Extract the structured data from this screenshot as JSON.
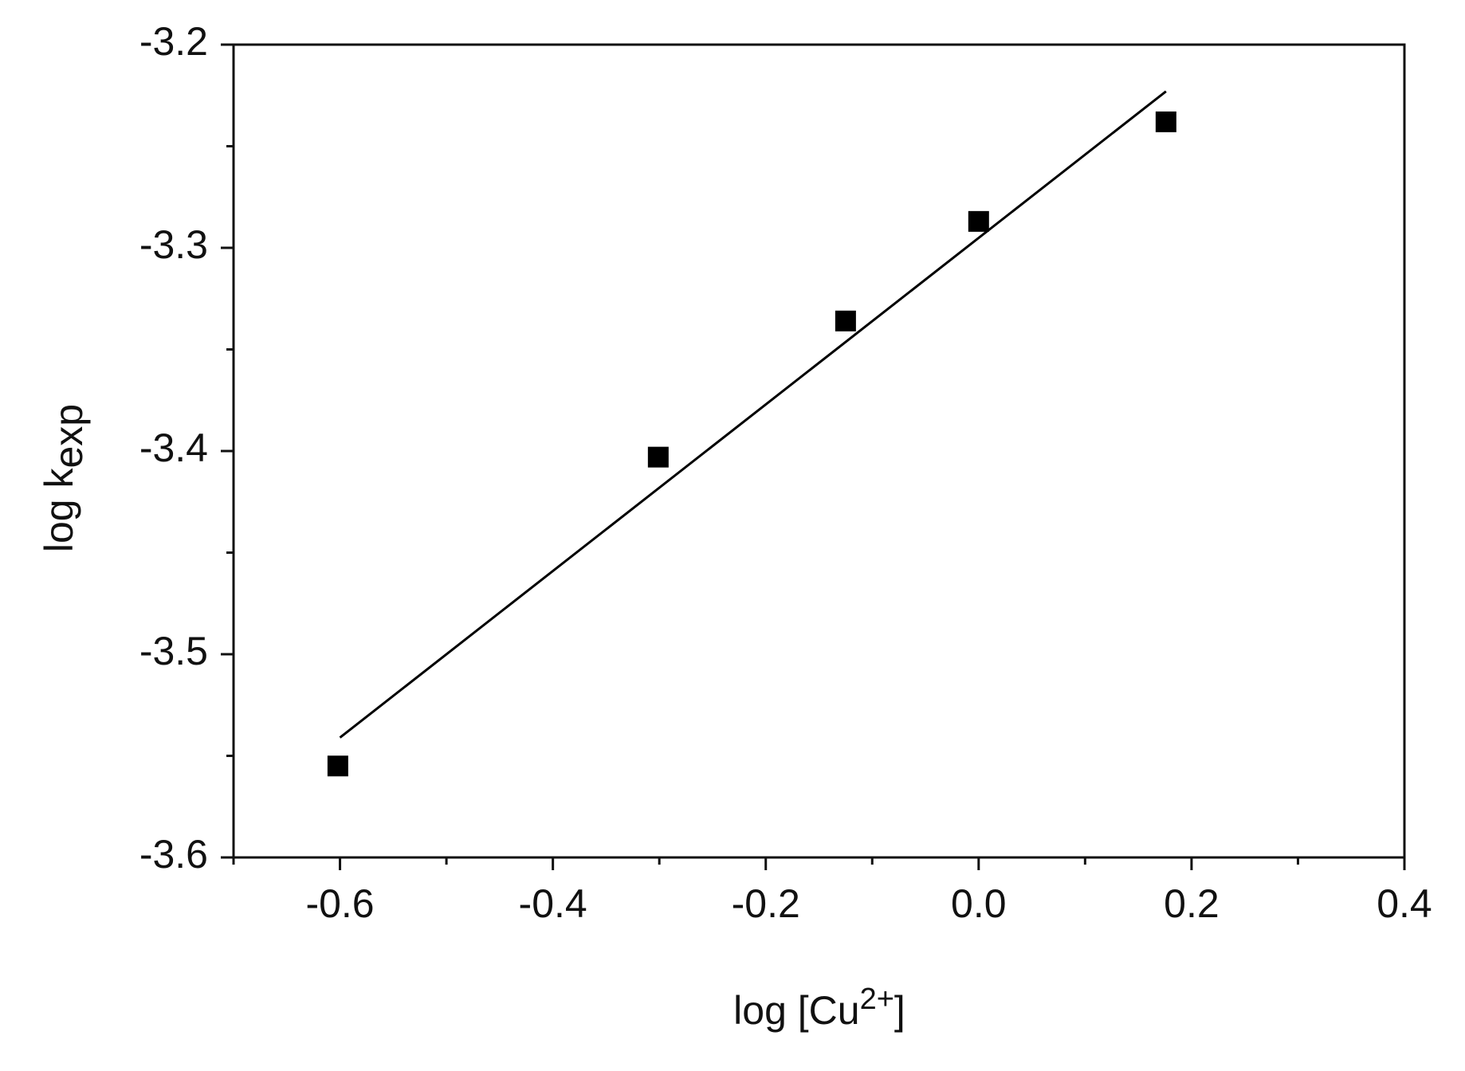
{
  "chart_data": {
    "type": "scatter",
    "x_label": {
      "text": "log [Cu",
      "superscript": "2+",
      "suffix": "]"
    },
    "y_label": {
      "text": "log k",
      "subscript": "exp"
    },
    "points": {
      "x": [
        -0.602,
        -0.301,
        -0.125,
        0.0,
        0.176
      ],
      "y": [
        -3.555,
        -3.403,
        -3.336,
        -3.287,
        -3.238
      ],
      "color": "#000000"
    },
    "fit": {
      "x": [
        -0.6,
        0.176
      ],
      "y": [
        -3.541,
        -3.223
      ],
      "color": "#000000"
    },
    "xlim": [
      -0.7,
      0.4
    ],
    "ylim": [
      -3.6,
      -3.2
    ],
    "xticks": [
      -0.6,
      -0.4,
      -0.2,
      {
        "value": 0,
        "label": "0.0"
      },
      0.2,
      0.4
    ],
    "yticks": [
      -3.6,
      -3.5,
      -3.4,
      -3.3,
      -3.2
    ],
    "xminorticks": [
      -0.7,
      -0.5,
      -0.3,
      -0.1,
      0.1,
      0.3
    ],
    "yminorticks": [
      -3.55,
      -3.45,
      -3.35,
      -3.25
    ]
  }
}
